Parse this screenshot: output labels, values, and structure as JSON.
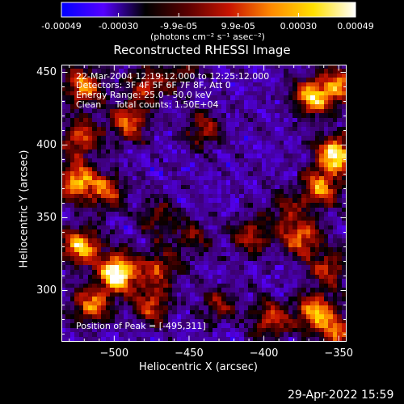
{
  "colorbar": {
    "tick_labels": [
      "-0.00049",
      "-0.00030",
      "-9.9e-05",
      "9.9e-05",
      "0.00030",
      "0.00049"
    ],
    "unit_label": "(photons cm⁻² s⁻¹ asec⁻²)",
    "range": [
      -0.00049,
      0.00049
    ],
    "colors": [
      "#0000ff",
      "#5500ff",
      "#000000",
      "#5a0000",
      "#c81400",
      "#ff8a00",
      "#ffe000",
      "#ffffff"
    ]
  },
  "chart_data": {
    "type": "heatmap",
    "title": "Reconstructed RHESSI Image",
    "xlabel": "Heliocentric X (arcsec)",
    "ylabel": "Heliocentric Y (arcsec)",
    "xlim": [
      -535,
      -345
    ],
    "ylim": [
      265,
      455
    ],
    "x_ticks": [
      -500,
      -450,
      -400,
      -350
    ],
    "x_tick_labels": [
      "−500",
      "−450",
      "−400",
      "−350"
    ],
    "y_ticks": [
      300,
      350,
      400,
      450
    ],
    "y_tick_labels": [
      "300",
      "350",
      "400",
      "450"
    ],
    "annotations": [
      "22-Mar-2004 12:19:12.000 to 12:25:12.000",
      "Detectors: 3F 4F 5F 6F 7F 8F, Att 0",
      "Energy Range: 25.0 - 50.0 keV",
      "Clean     Total counts: 1.50E+04"
    ],
    "peak_label": "Position of Peak = [-495,311]",
    "peak": [
      -495,
      311
    ],
    "sources": [
      {
        "x": -497,
        "y": 312,
        "amp": 1.0
      },
      {
        "x": -522,
        "y": 330,
        "amp": 0.75
      },
      {
        "x": -515,
        "y": 290,
        "amp": 0.6
      },
      {
        "x": -475,
        "y": 290,
        "amp": 0.5
      },
      {
        "x": -470,
        "y": 315,
        "amp": 0.45
      },
      {
        "x": -525,
        "y": 375,
        "amp": 0.7
      },
      {
        "x": -505,
        "y": 368,
        "amp": 0.5
      },
      {
        "x": -522,
        "y": 405,
        "amp": 0.55
      },
      {
        "x": -490,
        "y": 415,
        "amp": 0.55
      },
      {
        "x": -520,
        "y": 440,
        "amp": 0.65
      },
      {
        "x": -478,
        "y": 440,
        "amp": 0.45
      },
      {
        "x": -455,
        "y": 450,
        "amp": 0.3
      },
      {
        "x": -440,
        "y": 410,
        "amp": 0.4
      },
      {
        "x": -352,
        "y": 393,
        "amp": 0.85
      },
      {
        "x": -368,
        "y": 432,
        "amp": 0.7
      },
      {
        "x": -350,
        "y": 440,
        "amp": 0.6
      },
      {
        "x": -362,
        "y": 370,
        "amp": 0.6
      },
      {
        "x": -375,
        "y": 336,
        "amp": 0.6
      },
      {
        "x": -408,
        "y": 337,
        "amp": 0.45
      },
      {
        "x": -357,
        "y": 315,
        "amp": 0.45
      },
      {
        "x": -365,
        "y": 285,
        "amp": 0.7
      },
      {
        "x": -395,
        "y": 280,
        "amp": 0.5
      },
      {
        "x": -430,
        "y": 290,
        "amp": 0.35
      },
      {
        "x": -448,
        "y": 335,
        "amp": 0.3
      },
      {
        "x": -470,
        "y": 350,
        "amp": 0.35
      },
      {
        "x": -385,
        "y": 355,
        "amp": 0.3
      },
      {
        "x": -350,
        "y": 270,
        "amp": 0.5
      }
    ],
    "grid": false
  },
  "footer": {
    "timestamp": "29-Apr-2022 15:59"
  }
}
